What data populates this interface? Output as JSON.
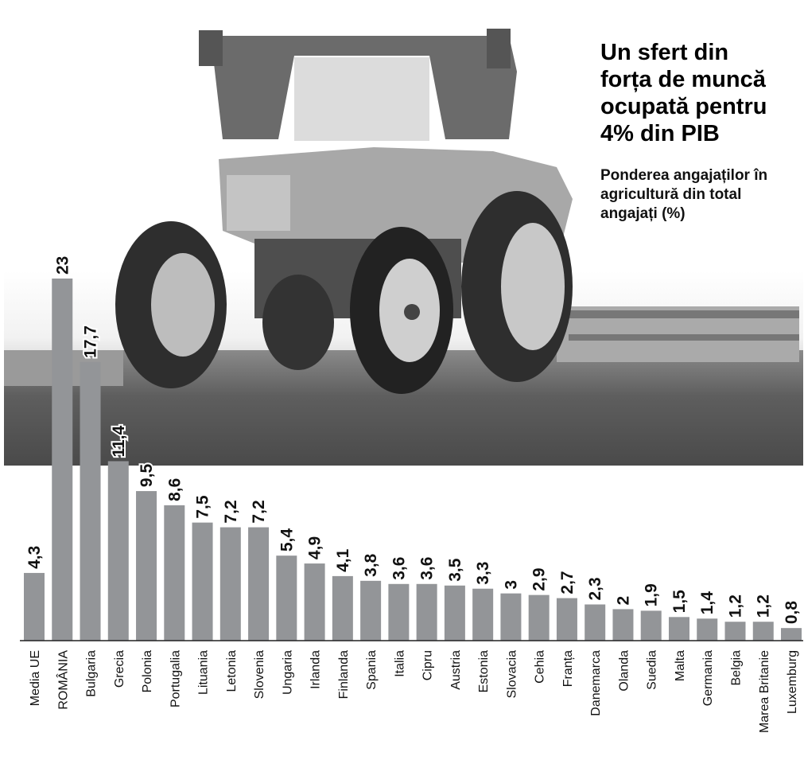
{
  "chart_data": {
    "type": "bar",
    "title": [
      "Un sfert din",
      "forța de muncă",
      "ocupată pentru",
      "4% din PIB"
    ],
    "subtitle": [
      "Ponderea angajaților în",
      "agricultură din total",
      "angajați (%)"
    ],
    "categories": [
      "Media UE",
      "ROMÂNIA",
      "Bulgaria",
      "Grecia",
      "Polonia",
      "Portugalia",
      "Lituania",
      "Letonia",
      "Slovenia",
      "Ungaria",
      "Irlanda",
      "Finlanda",
      "Spania",
      "Italia",
      "Cipru",
      "Austria",
      "Estonia",
      "Slovacia",
      "Cehia",
      "Franța",
      "Danemarca",
      "Olanda",
      "Suedia",
      "Malta",
      "Germania",
      "Belgia",
      "Marea Britanie",
      "Luxemburg"
    ],
    "values": [
      4.3,
      23,
      17.7,
      11.4,
      9.5,
      8.6,
      7.5,
      7.2,
      7.2,
      5.4,
      4.9,
      4.1,
      3.8,
      3.6,
      3.6,
      3.5,
      3.3,
      3,
      2.9,
      2.7,
      2.3,
      2,
      1.9,
      1.5,
      1.4,
      1.2,
      1.2,
      0.8
    ],
    "value_labels": [
      "4,3",
      "23",
      "17,7",
      "11,4",
      "9,5",
      "8,6",
      "7,5",
      "7,2",
      "7,2",
      "5,4",
      "4,9",
      "4,1",
      "3,8",
      "3,6",
      "3,6",
      "3,5",
      "3,3",
      "3",
      "2,9",
      "2,7",
      "2,3",
      "2",
      "1,9",
      "1,5",
      "1,4",
      "1,2",
      "1,2",
      "0,8"
    ],
    "color": "#939598"
  }
}
